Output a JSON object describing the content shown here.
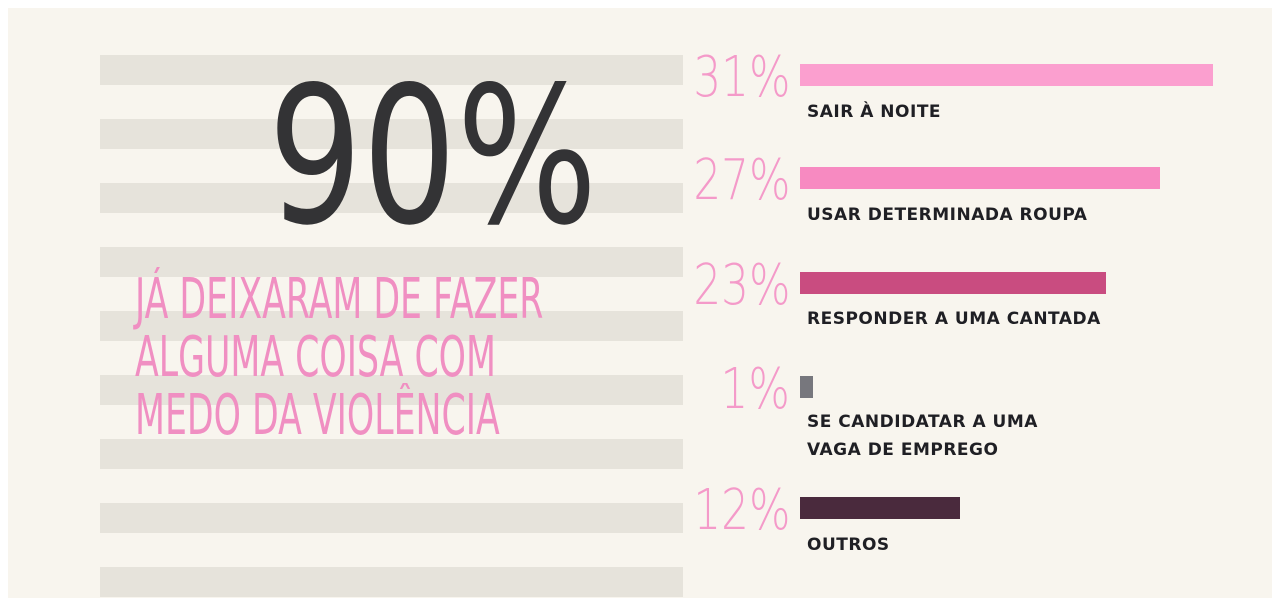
{
  "headline": {
    "value": 90,
    "label": "90%"
  },
  "description": [
    "JÁ DEIXARAM DE FAZER",
    "ALGUMA COISA COM",
    "MEDO DA VIOLÊNCIA"
  ],
  "chart_data": {
    "type": "bar",
    "orientation": "horizontal",
    "categories": [
      "SAIR À NOITE",
      "USAR DETERMINADA ROUPA",
      "RESPONDER A UMA CANTADA",
      "SE CANDIDATAR A UMA VAGA DE EMPREGO",
      "OUTROS"
    ],
    "values": [
      31,
      27,
      23,
      1,
      12
    ],
    "value_labels": [
      "31%",
      "27%",
      "23%",
      "1%",
      "12%"
    ],
    "colors": [
      "#fb9fcf",
      "#f78ac1",
      "#c94c80",
      "#77777d",
      "#4a2a3d"
    ]
  }
}
